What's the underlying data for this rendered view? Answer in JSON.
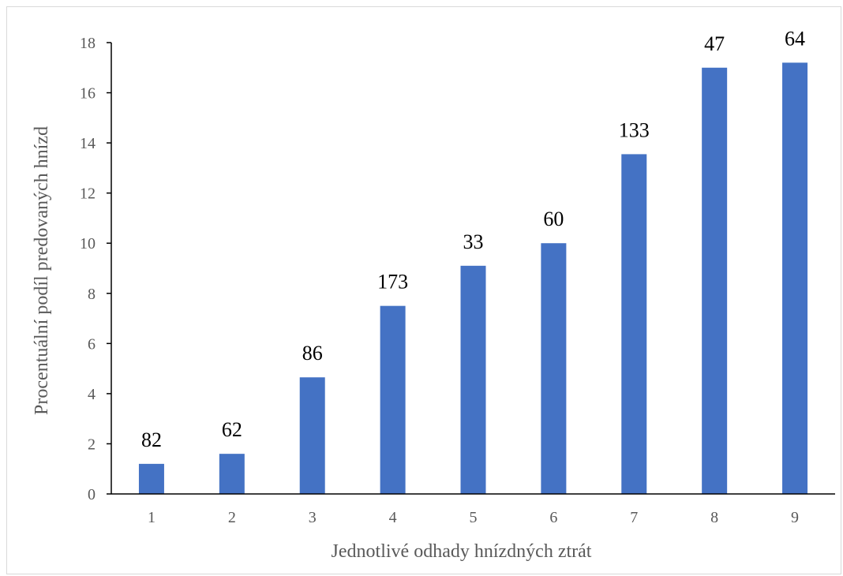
{
  "chart_data": {
    "type": "bar",
    "categories": [
      "1",
      "2",
      "3",
      "4",
      "5",
      "6",
      "7",
      "8",
      "9"
    ],
    "values": [
      1.2,
      1.6,
      4.65,
      7.5,
      9.1,
      10.0,
      13.55,
      17.0,
      17.2
    ],
    "data_labels": [
      "82",
      "62",
      "86",
      "173",
      "33",
      "60",
      "133",
      "47",
      "64"
    ],
    "title": "",
    "xlabel": "Jednotlivé odhady hnízdných ztrát",
    "ylabel": "Procentuální podíl predovaných hnízd",
    "ylim": [
      0,
      18
    ],
    "yticks": [
      0,
      2,
      4,
      6,
      8,
      10,
      12,
      14,
      16,
      18
    ],
    "grid": false,
    "legend": "none",
    "colors": {
      "bar": "#4472c4",
      "axis": "#000000",
      "tick_text": "#595959",
      "border": "#d9d9d9"
    }
  }
}
